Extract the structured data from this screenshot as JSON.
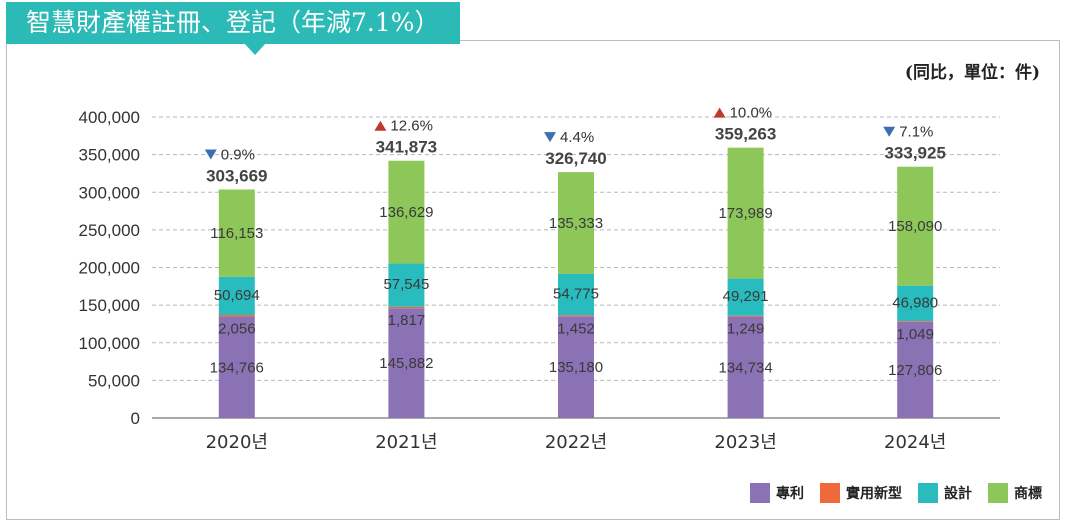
{
  "title": "智慧財產權註冊、登記（年減7.1%）",
  "unit_note": "(同比，單位：件)",
  "chart_data": {
    "type": "bar",
    "stacked": true,
    "categories": [
      "2020년",
      "2021년",
      "2022년",
      "2023년",
      "2024년"
    ],
    "series": [
      {
        "name": "專利",
        "color": "#8b72b5",
        "values": [
          134766,
          145882,
          135180,
          134734,
          127806
        ],
        "labels": [
          "134,766",
          "145,882",
          "135,180",
          "134,734",
          "127,806"
        ]
      },
      {
        "name": "實用新型",
        "color": "#f0693a",
        "values": [
          2056,
          1817,
          1452,
          1249,
          1049
        ],
        "labels": [
          "2,056",
          "1,817",
          "1,452",
          "1,249",
          "1,049"
        ]
      },
      {
        "name": "設計",
        "color": "#29bcbe",
        "values": [
          50694,
          57545,
          54775,
          49291,
          46980
        ],
        "labels": [
          "50,694",
          "57,545",
          "54,775",
          "49,291",
          "46,980"
        ]
      },
      {
        "name": "商標",
        "color": "#8dc75a",
        "values": [
          116153,
          136629,
          135333,
          173989,
          158090
        ],
        "labels": [
          "116,153",
          "136,629",
          "135,333",
          "173,989",
          "158,090"
        ]
      }
    ],
    "totals": [
      "303,669",
      "341,873",
      "326,740",
      "359,263",
      "333,925"
    ],
    "changes": [
      {
        "text": "0.9%",
        "direction": "down"
      },
      {
        "text": "12.6%",
        "direction": "up"
      },
      {
        "text": "4.4%",
        "direction": "down"
      },
      {
        "text": "10.0%",
        "direction": "up"
      },
      {
        "text": "7.1%",
        "direction": "down"
      }
    ],
    "ylim": [
      0,
      400000
    ],
    "yticks": [
      0,
      50000,
      100000,
      150000,
      200000,
      250000,
      300000,
      350000,
      400000
    ],
    "ytick_labels": [
      "0",
      "50,000",
      "100,000",
      "150,000",
      "200,000",
      "250,000",
      "300,000",
      "350,000",
      "400,000"
    ],
    "grid": true,
    "legend_position": "bottom-right",
    "up_color": "#c0392b",
    "down_color": "#3a6fb0"
  }
}
